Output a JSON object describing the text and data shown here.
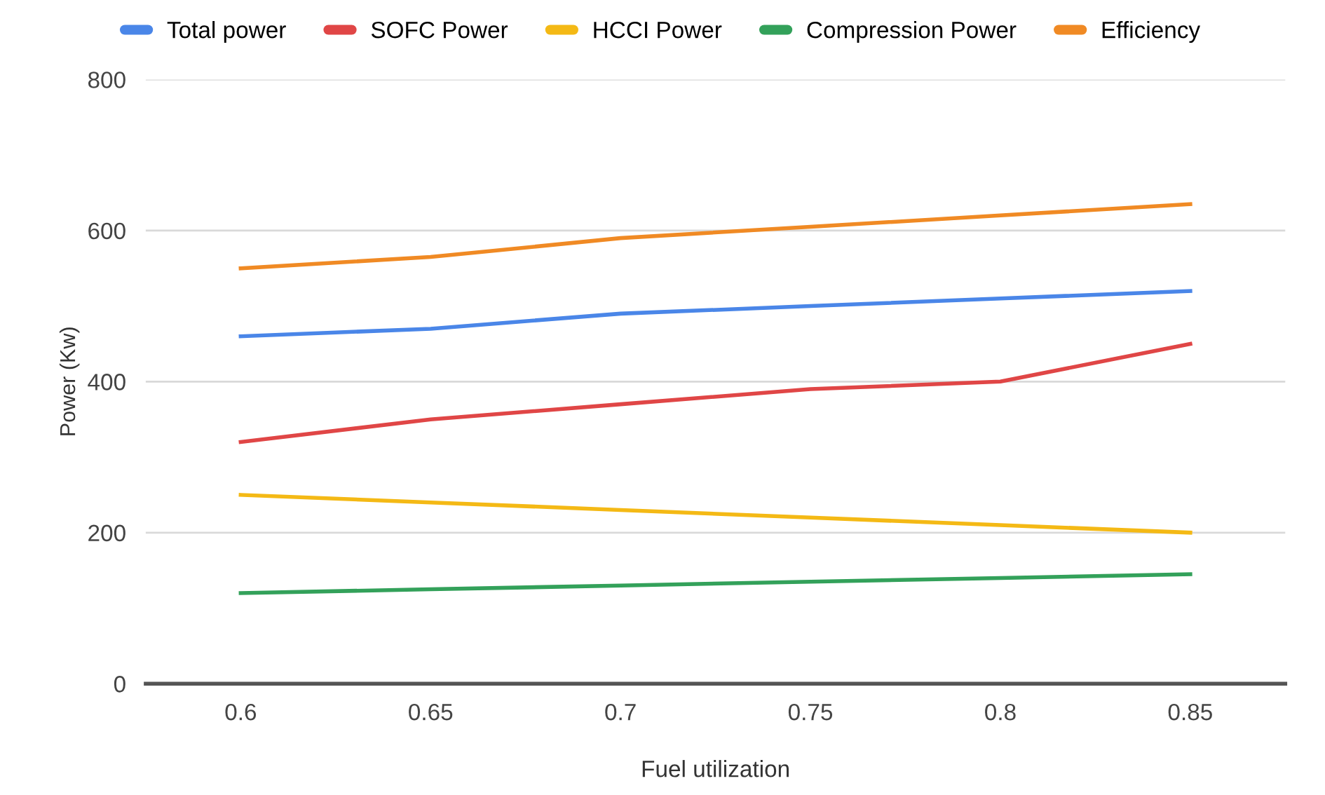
{
  "chart_data": {
    "type": "line",
    "xlabel": "Fuel utilization",
    "ylabel": "Power (Kw)",
    "categories": [
      "0.6",
      "0.65",
      "0.7",
      "0.75",
      "0.8",
      "0.85"
    ],
    "series": [
      {
        "name": "Total power",
        "color": "#4a86e8",
        "values": [
          460,
          470,
          490,
          500,
          510,
          520
        ]
      },
      {
        "name": "SOFC Power",
        "color": "#e04646",
        "values": [
          320,
          350,
          370,
          390,
          400,
          450
        ]
      },
      {
        "name": "HCCI Power",
        "color": "#f4b915",
        "values": [
          250,
          240,
          230,
          220,
          210,
          200
        ]
      },
      {
        "name": "Compression Power",
        "color": "#33a15a",
        "values": [
          120,
          125,
          130,
          135,
          140,
          145
        ]
      },
      {
        "name": "Efficiency",
        "color": "#f08a24",
        "values": [
          550,
          565,
          590,
          605,
          620,
          635
        ]
      }
    ],
    "ylim": [
      0,
      800
    ],
    "yticks": [
      0,
      200,
      400,
      600,
      800
    ],
    "grid": "y",
    "legend": "top",
    "marker": "none",
    "line_style": "solid"
  }
}
